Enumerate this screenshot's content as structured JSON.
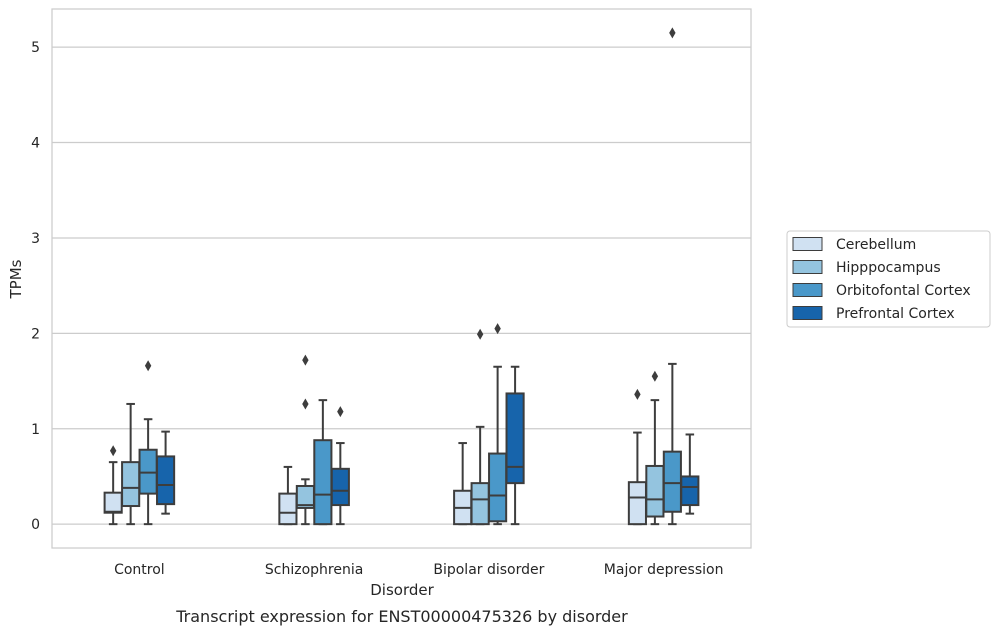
{
  "chart_data": {
    "type": "box",
    "caption": "Transcript expression for ENST00000475326 by disorder",
    "xlabel": "Disorder",
    "ylabel": "TPMs",
    "ylim": [
      -0.25,
      5.4
    ],
    "yticks": [
      0,
      1,
      2,
      3,
      4,
      5
    ],
    "grid": "horizontal",
    "legend_position": "right",
    "categories": [
      "Control",
      "Schizophrenia",
      "Bipolar disorder",
      "Major depression"
    ],
    "series": [
      {
        "name": "Cerebellum",
        "color": "#d0e1f2",
        "boxes": [
          {
            "whislo": 0.0,
            "q1": 0.12,
            "med": 0.13,
            "q3": 0.33,
            "whishi": 0.65,
            "fliers": [
              0.77
            ]
          },
          {
            "whislo": 0.0,
            "q1": 0.0,
            "med": 0.12,
            "q3": 0.32,
            "whishi": 0.6,
            "fliers": []
          },
          {
            "whislo": 0.0,
            "q1": 0.0,
            "med": 0.17,
            "q3": 0.35,
            "whishi": 0.85,
            "fliers": []
          },
          {
            "whislo": 0.0,
            "q1": 0.0,
            "med": 0.28,
            "q3": 0.44,
            "whishi": 0.96,
            "fliers": [
              1.36
            ]
          }
        ]
      },
      {
        "name": "Hipppocampus",
        "color": "#94c4df",
        "boxes": [
          {
            "whislo": 0.0,
            "q1": 0.19,
            "med": 0.38,
            "q3": 0.65,
            "whishi": 1.26,
            "fliers": []
          },
          {
            "whislo": 0.0,
            "q1": 0.17,
            "med": 0.2,
            "q3": 0.4,
            "whishi": 0.47,
            "fliers": [
              1.26,
              1.72
            ]
          },
          {
            "whislo": 0.0,
            "q1": 0.0,
            "med": 0.26,
            "q3": 0.43,
            "whishi": 1.02,
            "fliers": [
              1.99
            ]
          },
          {
            "whislo": 0.0,
            "q1": 0.08,
            "med": 0.26,
            "q3": 0.61,
            "whishi": 1.3,
            "fliers": [
              1.55
            ]
          }
        ]
      },
      {
        "name": "Orbitofontal Cortex",
        "color": "#4a98c9",
        "boxes": [
          {
            "whislo": 0.0,
            "q1": 0.32,
            "med": 0.54,
            "q3": 0.78,
            "whishi": 1.1,
            "fliers": [
              1.66
            ]
          },
          {
            "whislo": 0.0,
            "q1": 0.0,
            "med": 0.31,
            "q3": 0.88,
            "whishi": 1.3,
            "fliers": []
          },
          {
            "whislo": 0.0,
            "q1": 0.03,
            "med": 0.3,
            "q3": 0.74,
            "whishi": 1.65,
            "fliers": [
              2.05
            ]
          },
          {
            "whislo": 0.0,
            "q1": 0.13,
            "med": 0.43,
            "q3": 0.76,
            "whishi": 1.68,
            "fliers": [
              5.15
            ]
          }
        ]
      },
      {
        "name": "Prefrontal Cortex",
        "color": "#1764ab",
        "boxes": [
          {
            "whislo": 0.11,
            "q1": 0.21,
            "med": 0.41,
            "q3": 0.71,
            "whishi": 0.97,
            "fliers": []
          },
          {
            "whislo": 0.0,
            "q1": 0.2,
            "med": 0.35,
            "q3": 0.58,
            "whishi": 0.85,
            "fliers": [
              1.18
            ]
          },
          {
            "whislo": 0.0,
            "q1": 0.43,
            "med": 0.6,
            "q3": 1.37,
            "whishi": 1.65,
            "fliers": []
          },
          {
            "whislo": 0.11,
            "q1": 0.2,
            "med": 0.39,
            "q3": 0.5,
            "whishi": 0.94,
            "fliers": []
          }
        ]
      }
    ]
  }
}
